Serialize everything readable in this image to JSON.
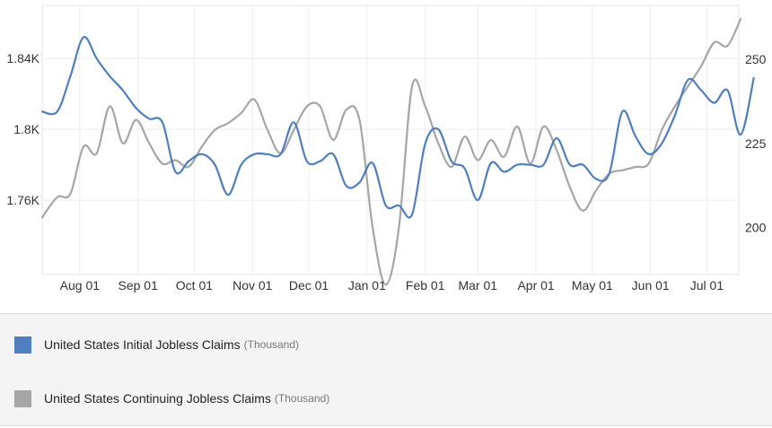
{
  "chart_data": {
    "type": "line",
    "x_ticks": [
      "Aug 01",
      "Sep 01",
      "Oct 01",
      "Nov 01",
      "Dec 01",
      "Jan 01",
      "Feb 01",
      "Mar 01",
      "Apr 01",
      "May 01",
      "Jun 01",
      "Jul 01"
    ],
    "y_left": {
      "ticks": [
        "1.76K",
        "1.8K",
        "1.84K"
      ],
      "values": [
        1760,
        1800,
        1840
      ],
      "range": [
        1718,
        1870
      ]
    },
    "y_right": {
      "ticks": [
        "200",
        "225",
        "250"
      ],
      "values": [
        200,
        225,
        250
      ],
      "range": [
        186,
        266
      ]
    },
    "x_range": [
      "2021-07-12",
      "2022-07-18"
    ],
    "grid": true,
    "legend_position": "bottom",
    "series": [
      {
        "name": "United States Initial Jobless Claims",
        "unit": "(Thousand)",
        "axis": "left",
        "color": "#4f7fbf",
        "points": [
          [
            "2021-07-12",
            1810
          ],
          [
            "2021-07-20",
            1810
          ],
          [
            "2021-07-27",
            1830
          ],
          [
            "2021-08-03",
            1852
          ],
          [
            "2021-08-10",
            1840
          ],
          [
            "2021-08-17",
            1830
          ],
          [
            "2021-08-24",
            1822
          ],
          [
            "2021-08-31",
            1812
          ],
          [
            "2021-09-07",
            1806
          ],
          [
            "2021-09-14",
            1804
          ],
          [
            "2021-09-21",
            1776
          ],
          [
            "2021-09-28",
            1782
          ],
          [
            "2021-10-05",
            1786
          ],
          [
            "2021-10-12",
            1780
          ],
          [
            "2021-10-19",
            1763
          ],
          [
            "2021-10-26",
            1780
          ],
          [
            "2021-11-02",
            1786
          ],
          [
            "2021-11-09",
            1786
          ],
          [
            "2021-11-16",
            1786
          ],
          [
            "2021-11-23",
            1804
          ],
          [
            "2021-11-30",
            1782
          ],
          [
            "2021-12-07",
            1782
          ],
          [
            "2021-12-14",
            1786
          ],
          [
            "2021-12-21",
            1768
          ],
          [
            "2021-12-28",
            1770
          ],
          [
            "2022-01-04",
            1781
          ],
          [
            "2022-01-11",
            1757
          ],
          [
            "2022-01-18",
            1757
          ],
          [
            "2022-01-25",
            1752
          ],
          [
            "2022-02-01",
            1792
          ],
          [
            "2022-02-08",
            1800
          ],
          [
            "2022-02-15",
            1782
          ],
          [
            "2022-02-22",
            1778
          ],
          [
            "2022-03-01",
            1760
          ],
          [
            "2022-03-08",
            1781
          ],
          [
            "2022-03-15",
            1776
          ],
          [
            "2022-03-22",
            1780
          ],
          [
            "2022-03-29",
            1780
          ],
          [
            "2022-04-05",
            1780
          ],
          [
            "2022-04-12",
            1795
          ],
          [
            "2022-04-19",
            1780
          ],
          [
            "2022-04-26",
            1780
          ],
          [
            "2022-05-03",
            1772
          ],
          [
            "2022-05-10",
            1775
          ],
          [
            "2022-05-17",
            1810
          ],
          [
            "2022-05-24",
            1796
          ],
          [
            "2022-05-31",
            1786
          ],
          [
            "2022-06-07",
            1792
          ],
          [
            "2022-06-14",
            1808
          ],
          [
            "2022-06-21",
            1828
          ],
          [
            "2022-06-28",
            1822
          ],
          [
            "2022-07-05",
            1815
          ],
          [
            "2022-07-12",
            1822
          ],
          [
            "2022-07-19",
            1797
          ],
          [
            "2022-07-26",
            1829
          ]
        ]
      },
      {
        "name": "United States Continuing Jobless Claims",
        "unit": "(Thousand)",
        "axis": "right",
        "color": "#a6a6a6",
        "points": [
          [
            "2021-07-12",
            203
          ],
          [
            "2021-07-20",
            209
          ],
          [
            "2021-07-27",
            210
          ],
          [
            "2021-08-03",
            224
          ],
          [
            "2021-08-10",
            222
          ],
          [
            "2021-08-17",
            236
          ],
          [
            "2021-08-24",
            225
          ],
          [
            "2021-08-31",
            232
          ],
          [
            "2021-09-07",
            225
          ],
          [
            "2021-09-14",
            219
          ],
          [
            "2021-09-21",
            220
          ],
          [
            "2021-09-28",
            218
          ],
          [
            "2021-10-05",
            224
          ],
          [
            "2021-10-12",
            229
          ],
          [
            "2021-10-19",
            231
          ],
          [
            "2021-10-26",
            234
          ],
          [
            "2021-11-02",
            238
          ],
          [
            "2021-11-09",
            229
          ],
          [
            "2021-11-16",
            222
          ],
          [
            "2021-11-23",
            229
          ],
          [
            "2021-11-30",
            236
          ],
          [
            "2021-12-07",
            236
          ],
          [
            "2021-12-14",
            226
          ],
          [
            "2021-12-21",
            235
          ],
          [
            "2021-12-28",
            232
          ],
          [
            "2022-01-04",
            200
          ],
          [
            "2022-01-11",
            183
          ],
          [
            "2022-01-18",
            200
          ],
          [
            "2022-01-25",
            242
          ],
          [
            "2022-02-01",
            236
          ],
          [
            "2022-02-08",
            225
          ],
          [
            "2022-02-15",
            218
          ],
          [
            "2022-02-22",
            227
          ],
          [
            "2022-03-01",
            220
          ],
          [
            "2022-03-08",
            226
          ],
          [
            "2022-03-15",
            221
          ],
          [
            "2022-03-22",
            230
          ],
          [
            "2022-03-29",
            219
          ],
          [
            "2022-04-05",
            230
          ],
          [
            "2022-04-12",
            223
          ],
          [
            "2022-04-19",
            212
          ],
          [
            "2022-04-26",
            205
          ],
          [
            "2022-05-03",
            211
          ],
          [
            "2022-05-10",
            216
          ],
          [
            "2022-05-17",
            217
          ],
          [
            "2022-05-24",
            218
          ],
          [
            "2022-05-31",
            219
          ],
          [
            "2022-06-07",
            229
          ],
          [
            "2022-06-14",
            236
          ],
          [
            "2022-06-21",
            242
          ],
          [
            "2022-06-28",
            248
          ],
          [
            "2022-07-05",
            255
          ],
          [
            "2022-07-12",
            254
          ],
          [
            "2022-07-19",
            262
          ]
        ]
      }
    ]
  }
}
